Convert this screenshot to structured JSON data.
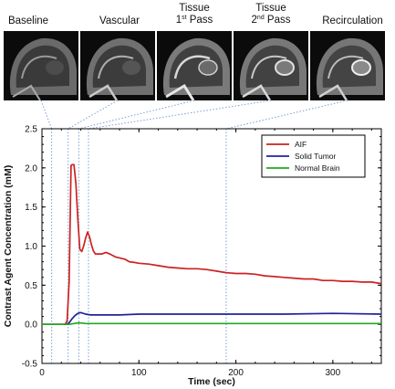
{
  "panels": [
    {
      "line1": "Baseline",
      "line2": "",
      "sup": "",
      "line2b": ""
    },
    {
      "line1": "Vascular",
      "line2": "",
      "sup": "",
      "line2b": ""
    },
    {
      "line1": "Tissue",
      "line2": "1",
      "sup": "st",
      "line2b": " Pass"
    },
    {
      "line1": "Tissue",
      "line2": "2",
      "sup": "nd",
      "line2b": " Pass"
    },
    {
      "line1": "Recirculation",
      "line2": "",
      "sup": "",
      "line2b": ""
    }
  ],
  "panel_times": [
    10,
    27,
    38,
    48,
    190
  ],
  "colors": {
    "aif": "#cc2222",
    "tumor": "#22229a",
    "brain": "#22aa22",
    "guide": "#7a9fd0",
    "thumb_bg": "#0b0b0b"
  },
  "chart_data": {
    "type": "line",
    "xlabel": "Time (sec)",
    "ylabel": "Contrast Agent Concentration (mM)",
    "xlim": [
      0,
      350
    ],
    "ylim": [
      -0.5,
      2.5
    ],
    "xticks": [
      0,
      100,
      200,
      300
    ],
    "yticks": [
      -0.5,
      0.0,
      0.5,
      1.0,
      1.5,
      2.0,
      2.5
    ],
    "grid": false,
    "legend_position": "top-right",
    "series": [
      {
        "name": "AIF",
        "color": "#cc2222",
        "x": [
          0,
          24,
          26,
          28,
          29,
          30,
          31,
          33,
          35,
          37,
          39,
          41,
          43,
          45,
          47,
          49,
          51,
          53,
          55,
          58,
          62,
          66,
          70,
          76,
          80,
          86,
          90,
          96,
          100,
          110,
          120,
          130,
          140,
          150,
          160,
          170,
          180,
          190,
          200,
          210,
          220,
          230,
          240,
          250,
          260,
          270,
          280,
          290,
          300,
          310,
          320,
          330,
          340,
          350
        ],
        "y": [
          0.0,
          0.0,
          0.05,
          0.55,
          1.25,
          2.03,
          2.04,
          2.04,
          1.8,
          1.35,
          0.96,
          0.93,
          1.0,
          1.1,
          1.18,
          1.12,
          1.02,
          0.94,
          0.9,
          0.9,
          0.9,
          0.92,
          0.9,
          0.86,
          0.85,
          0.83,
          0.8,
          0.79,
          0.78,
          0.77,
          0.75,
          0.73,
          0.72,
          0.71,
          0.71,
          0.7,
          0.68,
          0.66,
          0.65,
          0.65,
          0.64,
          0.62,
          0.61,
          0.6,
          0.59,
          0.58,
          0.58,
          0.56,
          0.56,
          0.55,
          0.55,
          0.54,
          0.54,
          0.52
        ]
      },
      {
        "name": "Solid Tumor",
        "color": "#22229a",
        "x": [
          0,
          25,
          28,
          31,
          34,
          37,
          40,
          45,
          50,
          60,
          80,
          100,
          150,
          200,
          250,
          300,
          350
        ],
        "y": [
          0.0,
          0.0,
          0.02,
          0.07,
          0.11,
          0.14,
          0.15,
          0.13,
          0.12,
          0.12,
          0.12,
          0.13,
          0.13,
          0.13,
          0.13,
          0.14,
          0.13
        ]
      },
      {
        "name": "Normal Brain",
        "color": "#22aa22",
        "x": [
          0,
          28,
          33,
          38,
          45,
          60,
          100,
          200,
          300,
          350
        ],
        "y": [
          0.0,
          0.0,
          0.01,
          0.02,
          0.01,
          0.01,
          0.01,
          0.01,
          0.01,
          0.01
        ]
      }
    ]
  }
}
